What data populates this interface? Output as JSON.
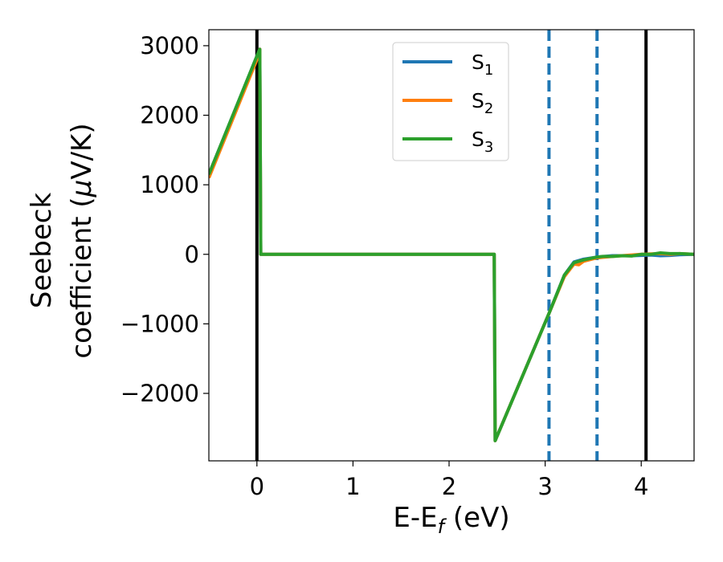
{
  "chart_data": {
    "type": "line",
    "xlabel": "E-E",
    "xlabel_sub": "f",
    "xlabel_unit": " (eV)",
    "ylabel_line1": "Seebeck",
    "ylabel_line2_pre": "coefficient  (",
    "ylabel_line2_mu": "μ",
    "ylabel_line2_post": "V/K)",
    "xlim": [
      -0.5,
      4.55
    ],
    "ylim": [
      -2970,
      3230
    ],
    "xticks": [
      0,
      1,
      2,
      3,
      4
    ],
    "xtick_labels": [
      "0",
      "1",
      "2",
      "3",
      "4"
    ],
    "yticks": [
      -2000,
      -1000,
      0,
      1000,
      2000,
      3000
    ],
    "ytick_labels": [
      "−2000",
      "−1000",
      "0",
      "1000",
      "2000",
      "3000"
    ],
    "vlines_solid": [
      0.0,
      4.05
    ],
    "vlines_dashed": [
      3.04,
      3.54
    ],
    "vline_solid_color": "#000000",
    "vline_dashed_color": "#1f77b4",
    "legend_position": "upper center",
    "series": [
      {
        "name": "S",
        "sub": "1",
        "color": "#1f77b4",
        "x": [
          -0.5,
          0.0,
          0.03,
          0.04,
          2.47,
          2.48,
          3.04,
          3.2,
          3.3,
          3.4,
          3.54,
          3.7,
          3.9,
          4.0,
          4.1,
          4.2,
          4.3,
          4.4,
          4.55
        ],
        "y": [
          1150,
          2850,
          2950,
          0,
          0,
          -2680,
          -850,
          -300,
          -110,
          -70,
          -40,
          -20,
          -20,
          -15,
          -10,
          -20,
          -15,
          -5,
          0
        ]
      },
      {
        "name": "S",
        "sub": "2",
        "color": "#ff7f0e",
        "x": [
          -0.5,
          0.0,
          0.03,
          0.04,
          2.47,
          2.48,
          3.04,
          3.2,
          3.3,
          3.35,
          3.4,
          3.54,
          3.7,
          3.9,
          4.0,
          4.1,
          4.2,
          4.3,
          4.4,
          4.55
        ],
        "y": [
          1100,
          2800,
          2950,
          0,
          0,
          -2680,
          -850,
          -320,
          -140,
          -150,
          -100,
          -50,
          -30,
          -10,
          0,
          5,
          10,
          0,
          10,
          0
        ]
      },
      {
        "name": "S",
        "sub": "3",
        "color": "#2ca02c",
        "x": [
          -0.5,
          0.0,
          0.03,
          0.04,
          2.47,
          2.48,
          3.04,
          3.2,
          3.3,
          3.4,
          3.54,
          3.6,
          3.7,
          3.8,
          3.9,
          4.0,
          4.1,
          4.2,
          4.3,
          4.4,
          4.55
        ],
        "y": [
          1150,
          2850,
          2950,
          0,
          0,
          -2680,
          -850,
          -300,
          -120,
          -80,
          -40,
          -30,
          -30,
          -20,
          -25,
          0,
          0,
          20,
          10,
          10,
          0
        ]
      }
    ]
  }
}
